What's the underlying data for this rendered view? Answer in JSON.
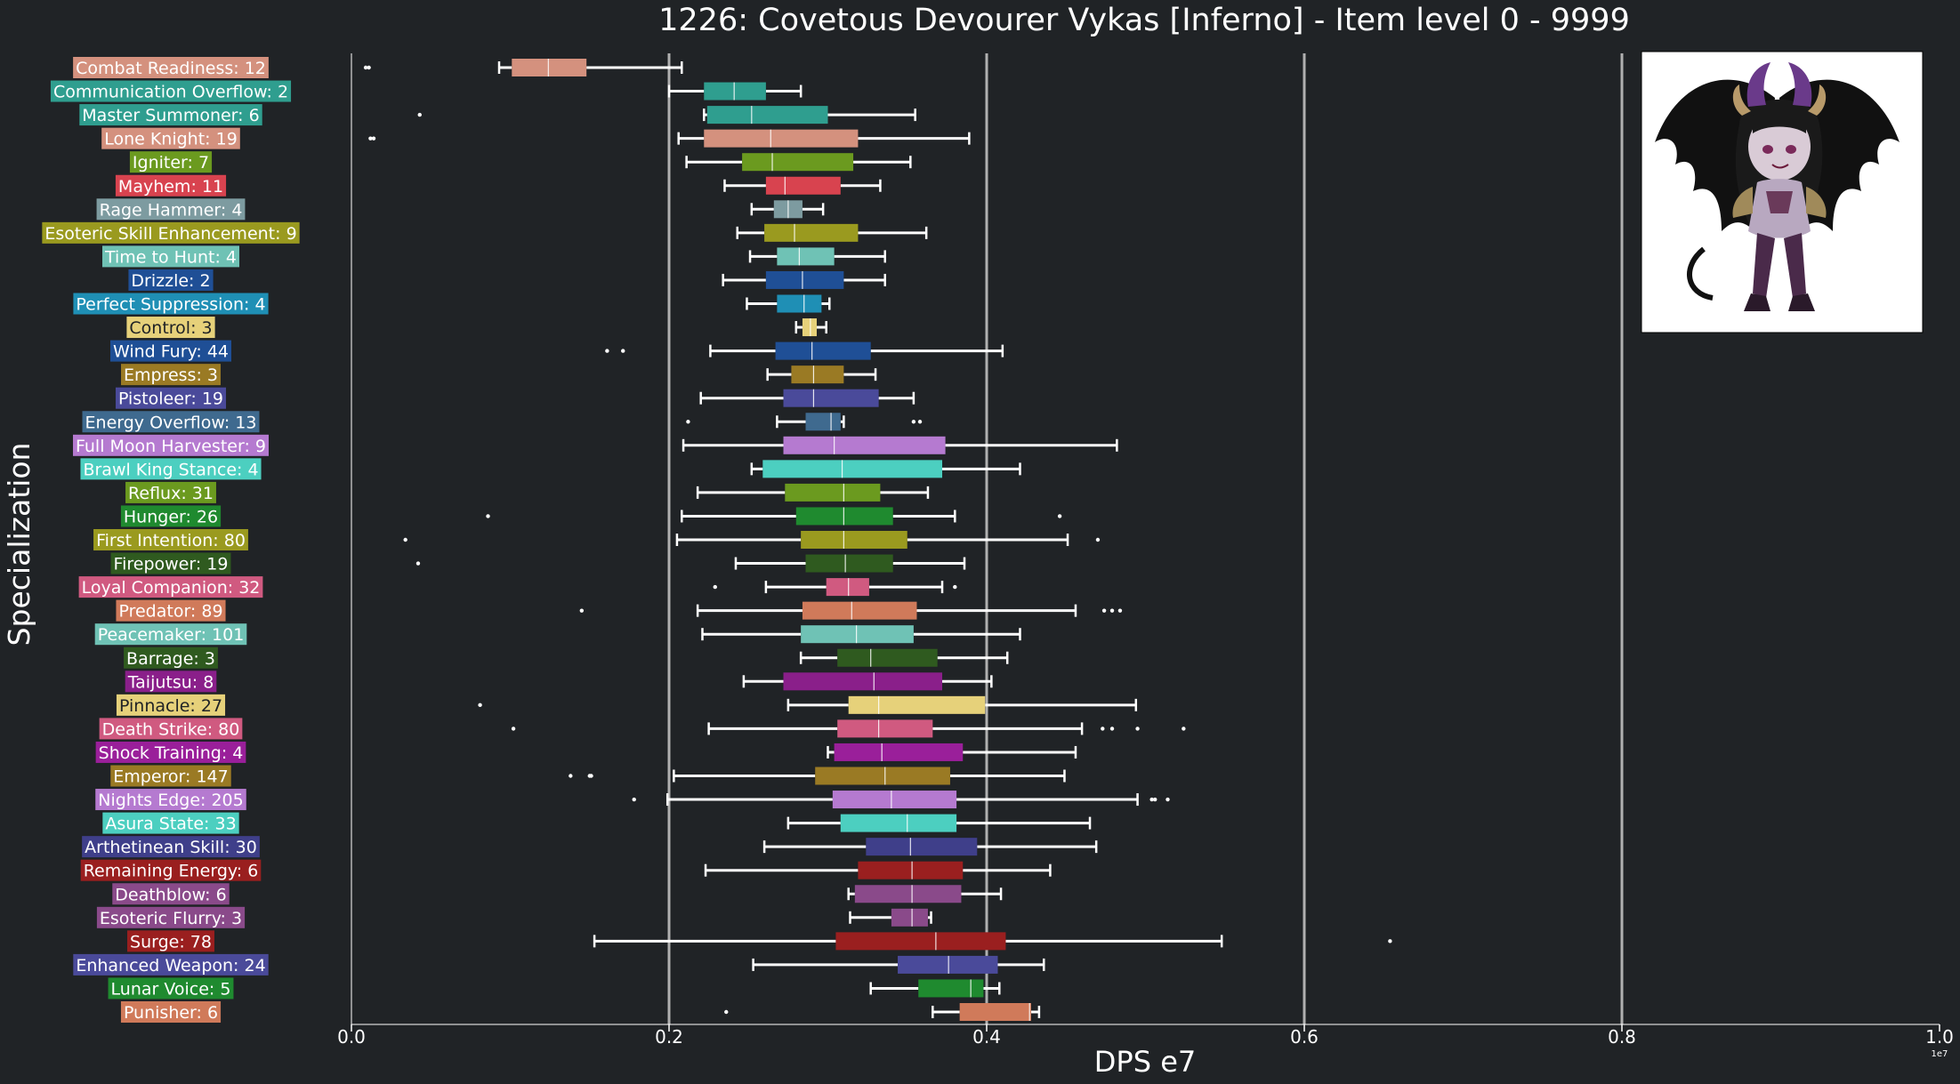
{
  "chart_data": {
    "type": "boxplot",
    "title": "1226: Covetous Devourer Vykas [Inferno] - Item level 0 - 9999",
    "xlabel": "DPS e7",
    "ylabel": "Specialization",
    "xlim": [
      0,
      1.0
    ],
    "x_ticks": [
      "0.0",
      "0.2",
      "0.4",
      "0.6",
      "0.8",
      "1.0"
    ],
    "x_offset_text": "1e7",
    "grid": "vertical lines at 0.2, 0.4, 0.6, 0.8",
    "inset_image": "chibi demon character portrait (top-right)",
    "series": [
      {
        "label": "Combat Readiness: 12",
        "color": "#d4917e",
        "whislo": 0.093,
        "q1": 0.101,
        "med": 0.124,
        "q3": 0.148,
        "whishi": 0.208,
        "fliers": [
          0.009,
          0.011
        ]
      },
      {
        "label": "Communication Overflow: 2",
        "color": "#2f9e8f",
        "whislo": 0.2,
        "q1": 0.222,
        "med": 0.241,
        "q3": 0.261,
        "whishi": 0.283,
        "fliers": []
      },
      {
        "label": "Master Summoner: 6",
        "color": "#2f9e8f",
        "whislo": 0.222,
        "q1": 0.224,
        "med": 0.252,
        "q3": 0.3,
        "whishi": 0.355,
        "fliers": [
          0.043
        ]
      },
      {
        "label": "Lone Knight: 19",
        "color": "#d4917e",
        "whislo": 0.206,
        "q1": 0.222,
        "med": 0.264,
        "q3": 0.319,
        "whishi": 0.389,
        "fliers": [
          0.012,
          0.014
        ]
      },
      {
        "label": "Igniter: 7",
        "color": "#6b9a1f",
        "whislo": 0.211,
        "q1": 0.246,
        "med": 0.265,
        "q3": 0.316,
        "whishi": 0.352,
        "fliers": []
      },
      {
        "label": "Mayhem: 11",
        "color": "#d8434f",
        "whislo": 0.235,
        "q1": 0.261,
        "med": 0.273,
        "q3": 0.308,
        "whishi": 0.333,
        "fliers": []
      },
      {
        "label": "Rage Hammer: 4",
        "color": "#7d9ba0",
        "whislo": 0.252,
        "q1": 0.266,
        "med": 0.275,
        "q3": 0.284,
        "whishi": 0.297,
        "fliers": []
      },
      {
        "label": "Esoteric Skill Enhancement: 9",
        "color": "#9a9a1f",
        "whislo": 0.243,
        "q1": 0.26,
        "med": 0.279,
        "q3": 0.319,
        "whishi": 0.362,
        "fliers": []
      },
      {
        "label": "Time to Hunt: 4",
        "color": "#6fc2b5",
        "whislo": 0.251,
        "q1": 0.268,
        "med": 0.282,
        "q3": 0.304,
        "whishi": 0.336,
        "fliers": []
      },
      {
        "label": "Drizzle: 2",
        "color": "#1f4f96",
        "whislo": 0.234,
        "q1": 0.261,
        "med": 0.284,
        "q3": 0.31,
        "whishi": 0.336,
        "fliers": []
      },
      {
        "label": "Perfect Suppression: 4",
        "color": "#1f8fb5",
        "whislo": 0.249,
        "q1": 0.268,
        "med": 0.285,
        "q3": 0.296,
        "whishi": 0.301,
        "fliers": []
      },
      {
        "label": "Control: 3",
        "color": "#e6d17a",
        "whislo": 0.28,
        "q1": 0.284,
        "med": 0.289,
        "q3": 0.293,
        "whishi": 0.299,
        "fliers": []
      },
      {
        "label": "Wind Fury: 44",
        "color": "#1f4f96",
        "whislo": 0.226,
        "q1": 0.267,
        "med": 0.29,
        "q3": 0.327,
        "whishi": 0.41,
        "fliers": [
          0.161,
          0.171
        ]
      },
      {
        "label": "Empress: 3",
        "color": "#9a7a24",
        "whislo": 0.262,
        "q1": 0.277,
        "med": 0.291,
        "q3": 0.31,
        "whishi": 0.33,
        "fliers": []
      },
      {
        "label": "Pistoleer: 19",
        "color": "#4a4a9a",
        "whislo": 0.22,
        "q1": 0.272,
        "med": 0.291,
        "q3": 0.332,
        "whishi": 0.354,
        "fliers": []
      },
      {
        "label": "Energy Overflow: 13",
        "color": "#3f6a8f",
        "whislo": 0.268,
        "q1": 0.286,
        "med": 0.302,
        "q3": 0.308,
        "whishi": 0.31,
        "fliers": [
          0.212,
          0.354,
          0.358
        ]
      },
      {
        "label": "Full Moon Harvester: 9",
        "color": "#b57ad0",
        "whislo": 0.209,
        "q1": 0.272,
        "med": 0.304,
        "q3": 0.374,
        "whishi": 0.482,
        "fliers": []
      },
      {
        "label": "Brawl King Stance: 4",
        "color": "#4ccfc0",
        "whislo": 0.252,
        "q1": 0.259,
        "med": 0.309,
        "q3": 0.372,
        "whishi": 0.421,
        "fliers": []
      },
      {
        "label": "Reflux: 31",
        "color": "#6b9a1f",
        "whislo": 0.218,
        "q1": 0.273,
        "med": 0.31,
        "q3": 0.333,
        "whishi": 0.363,
        "fliers": []
      },
      {
        "label": "Hunger: 26",
        "color": "#1f8a2f",
        "whislo": 0.208,
        "q1": 0.28,
        "med": 0.31,
        "q3": 0.341,
        "whishi": 0.38,
        "fliers": [
          0.086,
          0.446
        ]
      },
      {
        "label": "First Intention: 80",
        "color": "#9a9a1f",
        "whislo": 0.205,
        "q1": 0.283,
        "med": 0.31,
        "q3": 0.35,
        "whishi": 0.451,
        "fliers": [
          0.034,
          0.47
        ]
      },
      {
        "label": "Firepower: 19",
        "color": "#2f5a1f",
        "whislo": 0.242,
        "q1": 0.286,
        "med": 0.311,
        "q3": 0.341,
        "whishi": 0.386,
        "fliers": [
          0.042
        ]
      },
      {
        "label": "Loyal Companion: 32",
        "color": "#d05a80",
        "whislo": 0.261,
        "q1": 0.299,
        "med": 0.313,
        "q3": 0.326,
        "whishi": 0.372,
        "fliers": [
          0.229,
          0.38
        ]
      },
      {
        "label": "Predator: 89",
        "color": "#d07a5a",
        "whislo": 0.218,
        "q1": 0.284,
        "med": 0.315,
        "q3": 0.356,
        "whishi": 0.456,
        "fliers": [
          0.145,
          0.474,
          0.479,
          0.484
        ]
      },
      {
        "label": "Peacemaker: 101",
        "color": "#6fc2b5",
        "whislo": 0.221,
        "q1": 0.283,
        "med": 0.318,
        "q3": 0.354,
        "whishi": 0.421,
        "fliers": []
      },
      {
        "label": "Barrage: 3",
        "color": "#2f5a1f",
        "whislo": 0.283,
        "q1": 0.306,
        "med": 0.327,
        "q3": 0.369,
        "whishi": 0.413,
        "fliers": []
      },
      {
        "label": "Taijutsu: 8",
        "color": "#8a1f8a",
        "whislo": 0.247,
        "q1": 0.272,
        "med": 0.329,
        "q3": 0.372,
        "whishi": 0.403,
        "fliers": []
      },
      {
        "label": "Pinnacle: 27",
        "color": "#e6d17a",
        "whislo": 0.275,
        "q1": 0.313,
        "med": 0.332,
        "q3": 0.399,
        "whishi": 0.494,
        "fliers": [
          0.081
        ]
      },
      {
        "label": "Death Strike: 80",
        "color": "#d05a80",
        "whislo": 0.225,
        "q1": 0.306,
        "med": 0.332,
        "q3": 0.366,
        "whishi": 0.46,
        "fliers": [
          0.102,
          0.473,
          0.479,
          0.495,
          0.524
        ]
      },
      {
        "label": "Shock Training: 4",
        "color": "#9a1f9a",
        "whislo": 0.3,
        "q1": 0.304,
        "med": 0.334,
        "q3": 0.385,
        "whishi": 0.456,
        "fliers": []
      },
      {
        "label": "Emperor: 147",
        "color": "#9a7a24",
        "whislo": 0.203,
        "q1": 0.292,
        "med": 0.336,
        "q3": 0.377,
        "whishi": 0.449,
        "fliers": [
          0.138,
          0.15,
          0.151
        ]
      },
      {
        "label": "Nights Edge: 205",
        "color": "#b57ad0",
        "whislo": 0.199,
        "q1": 0.303,
        "med": 0.34,
        "q3": 0.381,
        "whishi": 0.495,
        "fliers": [
          0.178,
          0.504,
          0.506,
          0.514
        ]
      },
      {
        "label": "Asura State: 33",
        "color": "#4ccfc0",
        "whislo": 0.275,
        "q1": 0.308,
        "med": 0.35,
        "q3": 0.381,
        "whishi": 0.465,
        "fliers": []
      },
      {
        "label": "Arthetinean Skill: 30",
        "color": "#3f3f8a",
        "whislo": 0.26,
        "q1": 0.324,
        "med": 0.352,
        "q3": 0.394,
        "whishi": 0.469,
        "fliers": []
      },
      {
        "label": "Remaining Energy: 6",
        "color": "#9a1f1f",
        "whislo": 0.223,
        "q1": 0.319,
        "med": 0.353,
        "q3": 0.385,
        "whishi": 0.44,
        "fliers": []
      },
      {
        "label": "Deathblow: 6",
        "color": "#8a4a8a",
        "whislo": 0.313,
        "q1": 0.317,
        "med": 0.353,
        "q3": 0.384,
        "whishi": 0.409,
        "fliers": []
      },
      {
        "label": "Esoteric Flurry: 3",
        "color": "#8a4a8a",
        "whislo": 0.314,
        "q1": 0.34,
        "med": 0.353,
        "q3": 0.363,
        "whishi": 0.365,
        "fliers": []
      },
      {
        "label": "Surge: 78",
        "color": "#9a1f1f",
        "whislo": 0.153,
        "q1": 0.305,
        "med": 0.368,
        "q3": 0.412,
        "whishi": 0.548,
        "fliers": [
          0.654
        ]
      },
      {
        "label": "Enhanced Weapon: 24",
        "color": "#4a4a9a",
        "whislo": 0.253,
        "q1": 0.344,
        "med": 0.376,
        "q3": 0.407,
        "whishi": 0.436,
        "fliers": []
      },
      {
        "label": "Lunar Voice: 5",
        "color": "#1f8a2f",
        "whislo": 0.327,
        "q1": 0.357,
        "med": 0.39,
        "q3": 0.398,
        "whishi": 0.408,
        "fliers": []
      },
      {
        "label": "Punisher: 6",
        "color": "#d07a5a",
        "whislo": 0.366,
        "q1": 0.383,
        "med": 0.427,
        "q3": 0.428,
        "whishi": 0.433,
        "fliers": [
          0.236
        ]
      }
    ]
  }
}
